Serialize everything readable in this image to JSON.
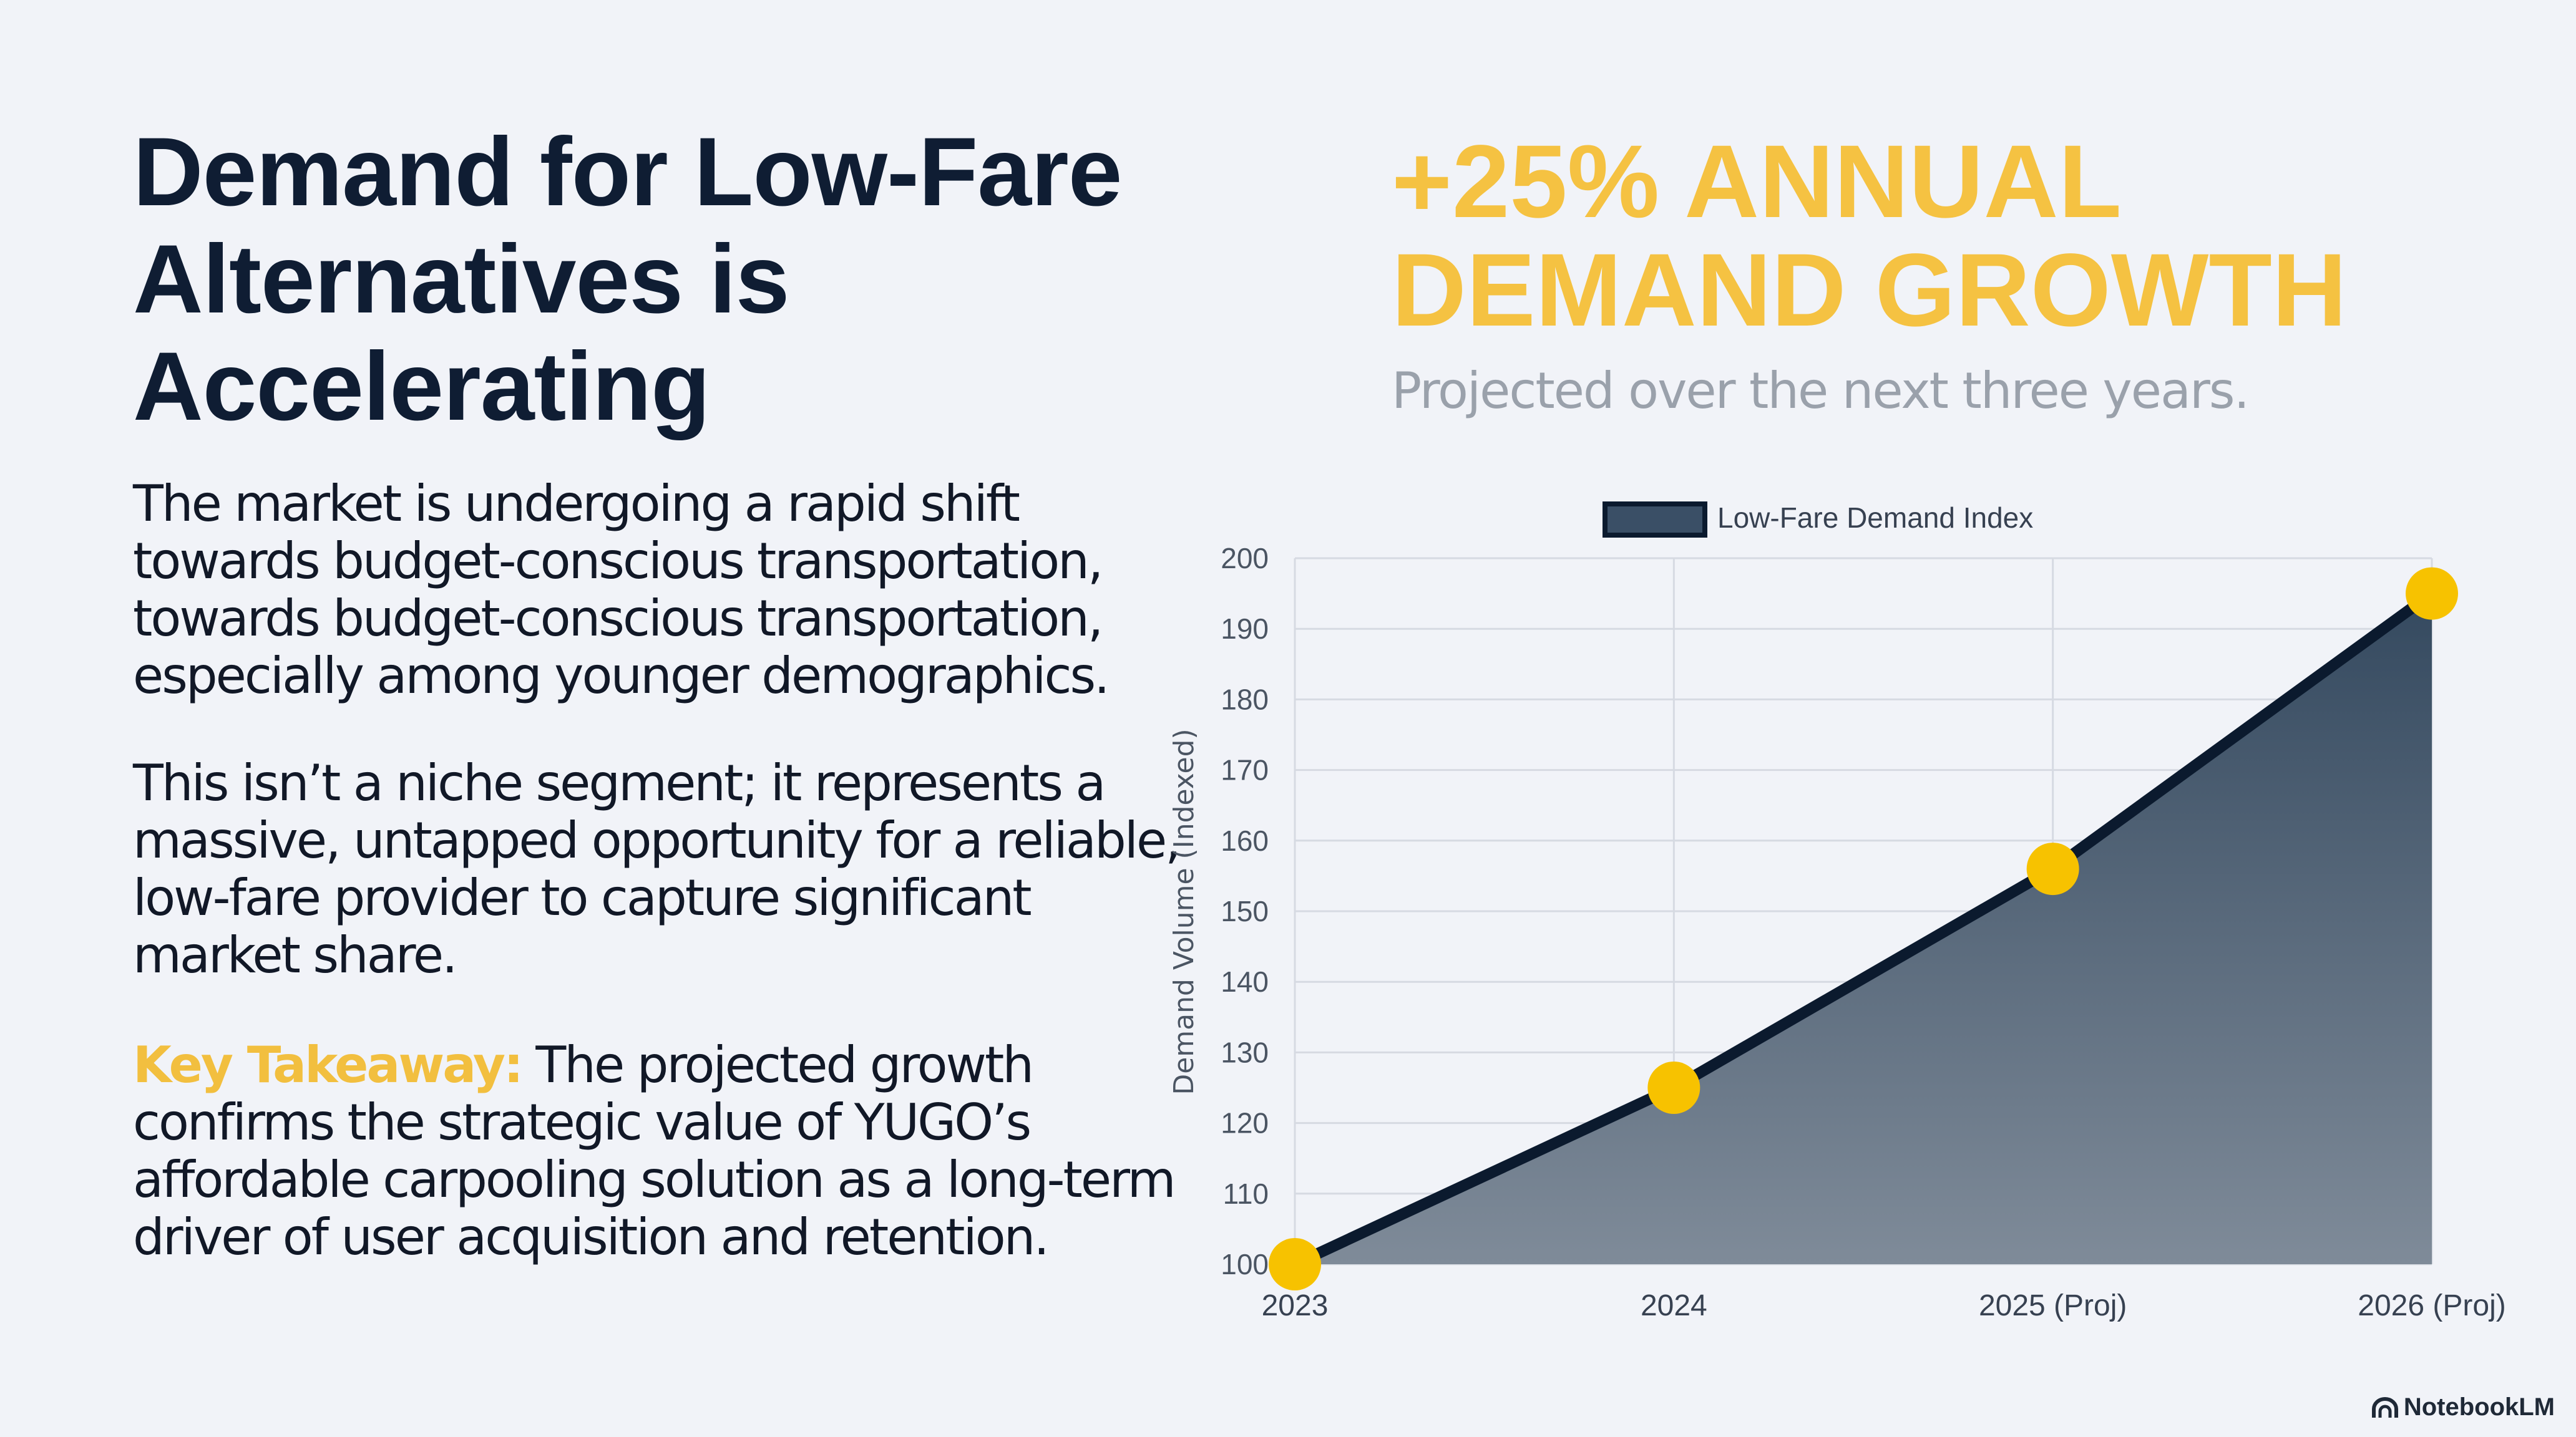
{
  "left": {
    "title": "Demand for Low-Fare Alternatives is Accelerating",
    "paragraph1": "The market is undergoing a rapid shift towards budget-conscious transportation, towards budget-conscious transportation, especially among younger demographics.",
    "paragraph2": "This isn’t a niche segment; it represents a massive, untapped opportunity for a reliable, low-fare provider to capture significant market share.",
    "takeaway_label": "Key Takeaway:",
    "takeaway_text": " The projected growth confirms the strategic value of YUGO’s affordable carpooling solution as a long-term driver of user acquisition and retention."
  },
  "right": {
    "headline": "+25% ANNUAL DEMAND GROWTH",
    "subtitle": "Projected over the next three years."
  },
  "colors": {
    "accent": "#f5c242",
    "title": "#0f1d33",
    "line": "#0b1a2e",
    "point": "#f7c200"
  },
  "chart_data": {
    "type": "area",
    "categories": [
      "2023",
      "2024",
      "2025 (Proj)",
      "2026 (Proj)"
    ],
    "series": [
      {
        "name": "Low-Fare Demand Index",
        "values": [
          100,
          125,
          156,
          195
        ]
      }
    ],
    "ylabel": "Demand Volume (Indexed)",
    "xlabel": "",
    "ylim": [
      100,
      200
    ],
    "yticks": [
      100,
      110,
      120,
      130,
      140,
      150,
      160,
      170,
      180,
      190,
      200
    ],
    "grid": true,
    "legend": "top-center"
  },
  "footer": {
    "brand": "NotebookLM",
    "brand_icon": "notebooklm-logo-icon"
  }
}
